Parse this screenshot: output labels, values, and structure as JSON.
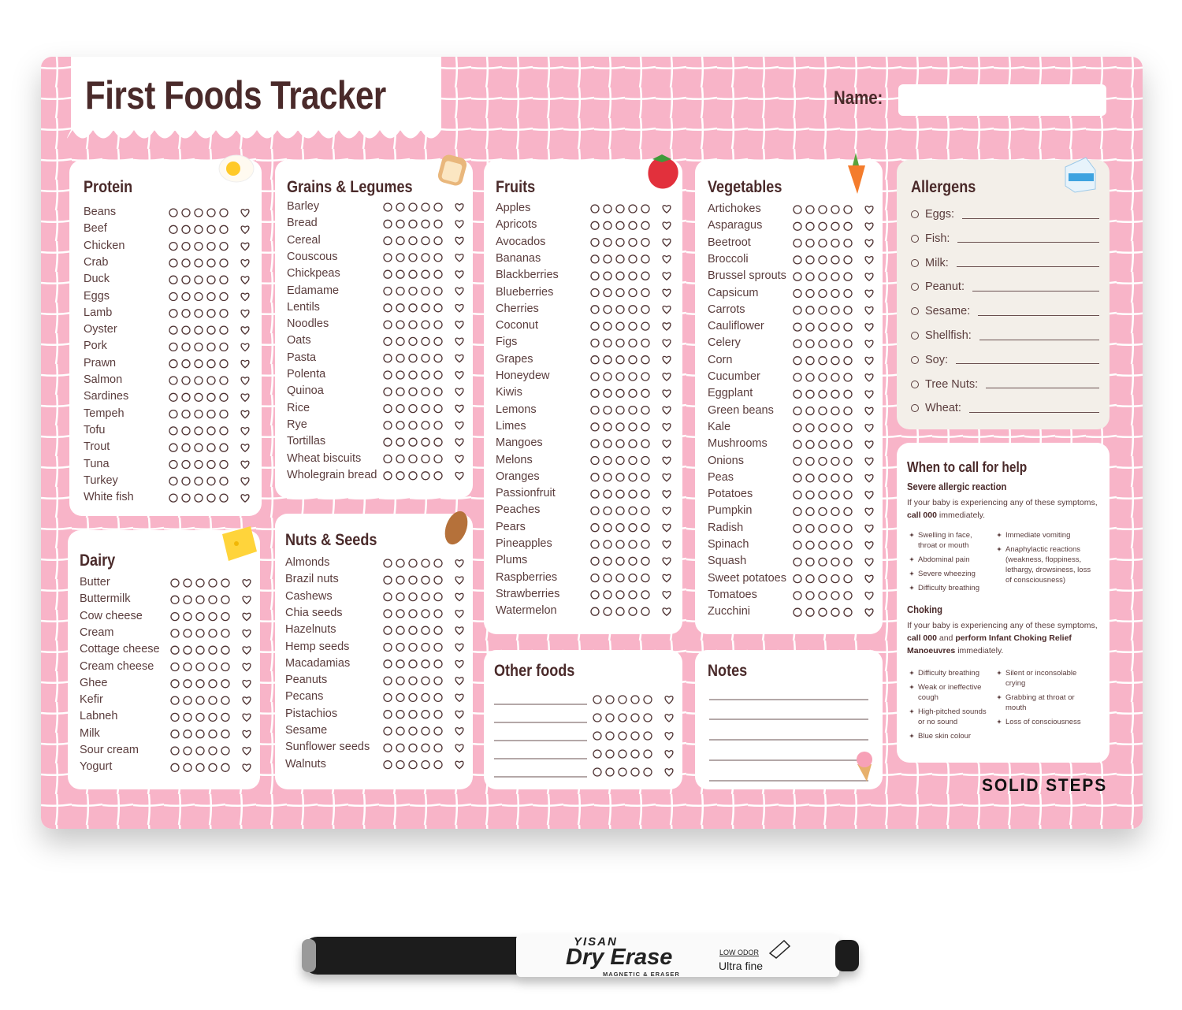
{
  "header": {
    "title": "First Foods Tracker",
    "name_label": "Name:"
  },
  "lists": [
    {
      "title": "Protein",
      "items": [
        "Beans",
        "Beef",
        "Chicken",
        "Crab",
        "Duck",
        "Eggs",
        "Lamb",
        "Oyster",
        "Pork",
        "Prawn",
        "Salmon",
        "Sardines",
        "Tempeh",
        "Tofu",
        "Trout",
        "Tuna",
        "Turkey",
        "White fish"
      ]
    },
    {
      "title": "Grains & Legumes",
      "items": [
        "Barley",
        "Bread",
        "Cereal",
        "Couscous",
        "Chickpeas",
        "Edamame",
        "Lentils",
        "Noodles",
        "Oats",
        "Pasta",
        "Polenta",
        "Quinoa",
        "Rice",
        "Rye",
        "Tortillas",
        "Wheat biscuits",
        "Wholegrain bread"
      ]
    },
    {
      "title": "Fruits",
      "items": [
        "Apples",
        "Apricots",
        "Avocados",
        "Bananas",
        "Blackberries",
        "Blueberries",
        "Cherries",
        "Coconut",
        "Figs",
        "Grapes",
        "Honeydew",
        "Kiwis",
        "Lemons",
        "Limes",
        "Mangoes",
        "Melons",
        "Oranges",
        "Passionfruit",
        "Peaches",
        "Pears",
        "Pineapples",
        "Plums",
        "Raspberries",
        "Strawberries",
        "Watermelon"
      ]
    },
    {
      "title": "Vegetables",
      "items": [
        "Artichokes",
        "Asparagus",
        "Beetroot",
        "Broccoli",
        "Brussel sprouts",
        "Capsicum",
        "Carrots",
        "Cauliflower",
        "Celery",
        "Corn",
        "Cucumber",
        "Eggplant",
        "Green beans",
        "Kale",
        "Mushrooms",
        "Onions",
        "Peas",
        "Potatoes",
        "Pumpkin",
        "Radish",
        "Spinach",
        "Squash",
        "Sweet potatoes",
        "Tomatoes",
        "Zucchini"
      ]
    },
    {
      "title": "Dairy",
      "items": [
        "Butter",
        "Buttermilk",
        "Cow cheese",
        "Cream",
        "Cottage cheese",
        "Cream cheese",
        "Ghee",
        "Kefir",
        "Labneh",
        "Milk",
        "Sour cream",
        "Yogurt"
      ]
    },
    {
      "title": "Nuts & Seeds",
      "items": [
        "Almonds",
        "Brazil nuts",
        "Cashews",
        "Chia seeds",
        "Hazelnuts",
        "Hemp seeds",
        "Macadamias",
        "Peanuts",
        "Pecans",
        "Pistachios",
        "Sesame",
        "Sunflower seeds",
        "Walnuts"
      ]
    }
  ],
  "allergens": {
    "title": "Allergens",
    "items": [
      "Eggs:",
      "Fish:",
      "Milk:",
      "Peanut:",
      "Sesame:",
      "Shellfish:",
      "Soy:",
      "Tree Nuts:",
      "Wheat:"
    ]
  },
  "help": {
    "title": "When to call for help",
    "severe": {
      "heading": "Severe allergic reaction",
      "text": [
        "If your baby is experiencing any of these symptoms, ",
        "call 000",
        " immediately."
      ],
      "left": [
        "Swelling in face, throat or mouth",
        "Abdominal pain",
        "Severe wheezing",
        "Difficulty breathing"
      ],
      "right": [
        "Immediate vomiting",
        "Anaphylactic reactions (weakness, floppiness, lethargy, drowsiness, loss of consciousness)"
      ]
    },
    "choking": {
      "heading": "Choking",
      "text": [
        "If your baby is experiencing any of these symptoms, ",
        "call 000",
        " and ",
        "perform Infant Choking Relief Manoeuvres",
        " immediately."
      ],
      "left": [
        "Difficulty breathing",
        "Weak or ineffective cough",
        "High-pitched sounds or no sound",
        "Blue skin colour"
      ],
      "right": [
        "Silent or inconsolable crying",
        "Grabbing at throat or mouth",
        "Loss of consciousness"
      ]
    }
  },
  "other_foods": {
    "title": "Other foods"
  },
  "notes": {
    "title": "Notes"
  },
  "footer": {
    "brand": "SOLID STEPS"
  },
  "marker": {
    "maker": "YISAN",
    "product": "Dry Erase",
    "subtitle": "MAGNETIC & ERASER",
    "odor": "LOW ODOR",
    "tip": "Ultra fine"
  }
}
